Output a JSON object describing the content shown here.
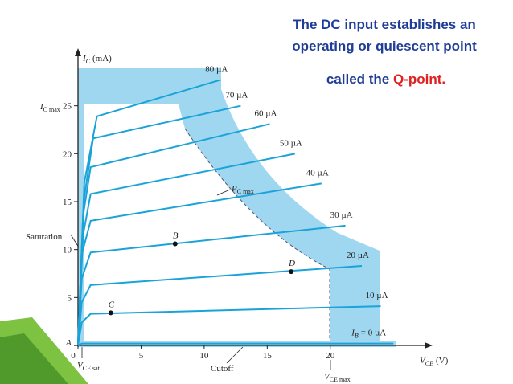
{
  "chart_data": {
    "type": "line",
    "title_lines": [
      "The DC input establishes an",
      "operating or quiescent point"
    ],
    "title_tail": {
      "text": "called the",
      "highlight": "Q-point."
    },
    "ylabel": {
      "main": "I",
      "sub": "C",
      "unit": "(mA)"
    },
    "xlabel": {
      "main": "V",
      "sub": "CE",
      "unit": "(V)"
    },
    "ib_prefix": {
      "main": "I",
      "sub": "B"
    },
    "xlim": [
      0,
      27.6
    ],
    "ylim": [
      0,
      30
    ],
    "xticks": [
      0,
      5,
      10,
      15,
      20
    ],
    "yticks": [
      5,
      10,
      15,
      20,
      25
    ],
    "series": [
      {
        "name": "= 0 µA",
        "color": "#1aa3d8",
        "x": [
          0,
          0.3,
          25
        ],
        "values": [
          0,
          0.2,
          0.2
        ]
      },
      {
        "name": "10 µA",
        "color": "#1aa3d8",
        "x": [
          0,
          0.3,
          1,
          24
        ],
        "values": [
          0,
          2.4,
          3.3,
          4.1
        ]
      },
      {
        "name": "20 µA",
        "color": "#1aa3d8",
        "x": [
          0,
          0.3,
          1,
          22.5
        ],
        "values": [
          0,
          4.5,
          6.3,
          8.3
        ]
      },
      {
        "name": "30 µA",
        "color": "#1aa3d8",
        "x": [
          0,
          0.3,
          1,
          21.2
        ],
        "values": [
          0,
          7,
          9.7,
          12.5
        ]
      },
      {
        "name": "40 µA",
        "color": "#1aa3d8",
        "x": [
          0,
          0.3,
          1,
          19.3
        ],
        "values": [
          0,
          9.5,
          13,
          16.9
        ]
      },
      {
        "name": "50 µA",
        "color": "#1aa3d8",
        "x": [
          0,
          0.4,
          1,
          17.2
        ],
        "values": [
          0,
          11.5,
          15.8,
          20
        ]
      },
      {
        "name": "60 µA",
        "color": "#1aa3d8",
        "x": [
          0,
          0.4,
          1,
          15.2
        ],
        "values": [
          0,
          13.5,
          18.6,
          23.1
        ]
      },
      {
        "name": "70 µA",
        "color": "#1aa3d8",
        "x": [
          0,
          0.5,
          1.2,
          12.9
        ],
        "values": [
          0,
          15.5,
          21.6,
          25
        ]
      },
      {
        "name": "80 µA",
        "color": "#1aa3d8",
        "x": [
          0,
          0.5,
          1.5,
          11.3
        ],
        "values": [
          0,
          17,
          23.9,
          27.7
        ]
      }
    ],
    "points": [
      {
        "label": "B",
        "x": 7.7,
        "y": 10.6
      },
      {
        "label": "C",
        "x": 2.6,
        "y": 3.4
      },
      {
        "label": "D",
        "x": 16.9,
        "y": 7.7
      }
    ],
    "annotations": {
      "origin": "A",
      "saturation": "Saturation",
      "cutoff": "Cutoff",
      "icmax": {
        "main": "I",
        "sub": "C max"
      },
      "pcmax": {
        "main": "P",
        "sub": "C max"
      },
      "vcesat": {
        "main": "V",
        "sub": "CE sat"
      },
      "vcemax": {
        "main": "V",
        "sub": "CE max"
      }
    }
  }
}
